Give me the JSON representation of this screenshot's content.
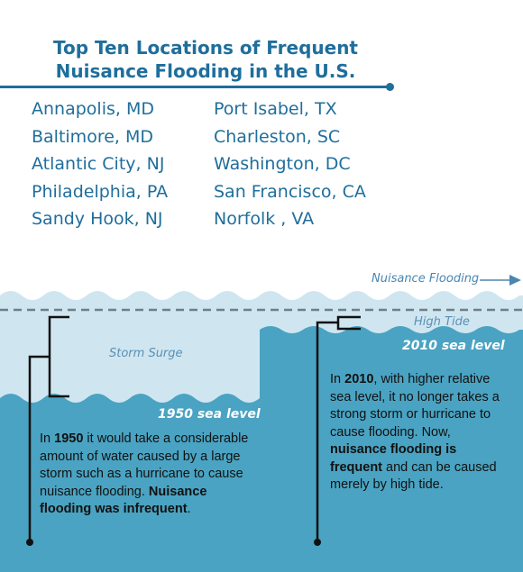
{
  "title": {
    "line1": "Top Ten Locations of Frequent",
    "line2": "Nuisance Flooding in the U.S."
  },
  "locations_left": [
    "Annapolis, MD",
    "Baltimore, MD",
    "Atlantic City, NJ",
    "Philadelphia, PA",
    "Sandy Hook, NJ"
  ],
  "locations_right": [
    "Port Isabel, TX",
    "Charleston, SC",
    "Washington, DC",
    "San Francisco, CA",
    "Norfolk , VA"
  ],
  "labels": {
    "nuisance_flooding": "Nuisance Flooding",
    "storm_surge": "Storm Surge",
    "high_tide": "High Tide",
    "sea_1950": "1950 sea level",
    "sea_2010": "2010 sea level"
  },
  "para_1950": {
    "t1": "In ",
    "b1": "1950",
    "t2": " it would take a considerable amount of water caused by a large storm such as a hurricane to cause nuisance flooding.  ",
    "b2": "Nuisance flooding was infrequent",
    "t3": "."
  },
  "para_2010": {
    "t1": "In ",
    "b1": "2010",
    "t2": ", with higher relative sea level, it no longer takes a strong storm or hurricane to cause flooding.  Now, ",
    "b2": "nuisance flooding is frequent",
    "t3": " and can be caused merely by high tide."
  },
  "colors": {
    "title": "#1f6e9c",
    "water_light": "#cfe6f1",
    "water_deep": "#4aa3c2",
    "text": "#111111"
  }
}
